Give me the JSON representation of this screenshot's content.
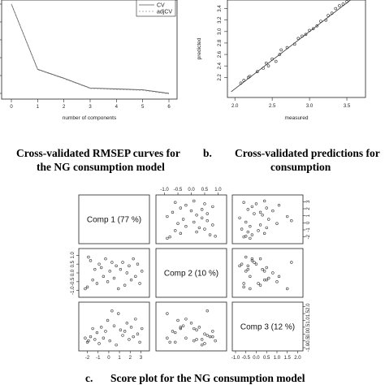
{
  "captions": {
    "a_line1": "Cross-validated RMSEP curves for",
    "a_line2": "the NG consumption model",
    "b_label": "b.",
    "b_line1": "Cross-validated predictions for",
    "b_line2": "consumption",
    "c_label": "c.",
    "c_text": "Score plot for the NG consumption model"
  },
  "chart_data": [
    {
      "type": "line",
      "xlabel": "number of components",
      "ylabel": "",
      "x_ticks": [
        "0",
        "1",
        "2",
        "3",
        "4",
        "5",
        "6"
      ],
      "xlim": [
        0,
        6
      ],
      "ylim": [
        0,
        1
      ],
      "legend": {
        "position": "top-right",
        "entries": [
          "CV",
          "adjCV"
        ]
      },
      "series": [
        {
          "name": "CV",
          "x": [
            0,
            1,
            2,
            3,
            4,
            5,
            6
          ],
          "y": [
            1.0,
            0.27,
            0.17,
            0.06,
            0.05,
            0.04,
            0.0
          ],
          "color": "#555555",
          "dash": ""
        },
        {
          "name": "adjCV",
          "x": [
            0,
            1,
            2,
            3,
            4,
            5,
            6
          ],
          "y": [
            1.0,
            0.265,
            0.165,
            0.055,
            0.045,
            0.035,
            -0.005
          ],
          "color": "#999999",
          "dash": "2,2"
        }
      ]
    },
    {
      "type": "scatter",
      "xlabel": "measured",
      "ylabel": "predicted",
      "xlim": [
        1.9,
        3.75
      ],
      "ylim": [
        1.85,
        3.55
      ],
      "x_ticks": [
        "2.0",
        "2.5",
        "3.0",
        "3.5"
      ],
      "y_ticks": [
        "2.2",
        "2.4",
        "2.6",
        "2.8",
        "3.0",
        "3.2",
        "3.4"
      ],
      "y_tick_values": [
        2.2,
        2.4,
        2.6,
        2.8,
        3.0,
        3.2,
        3.4
      ],
      "x_tick_values": [
        2.0,
        2.5,
        3.0,
        3.5
      ],
      "fit_line": [
        [
          1.95,
          1.95
        ],
        [
          3.7,
          3.7
        ]
      ],
      "points": [
        [
          2.08,
          2.1
        ],
        [
          2.12,
          2.15
        ],
        [
          2.18,
          2.2
        ],
        [
          2.2,
          2.22
        ],
        [
          2.3,
          2.3
        ],
        [
          2.38,
          2.36
        ],
        [
          2.42,
          2.45
        ],
        [
          2.5,
          2.52
        ],
        [
          2.55,
          2.48
        ],
        [
          2.6,
          2.6
        ],
        [
          2.62,
          2.68
        ],
        [
          2.7,
          2.72
        ],
        [
          2.8,
          2.78
        ],
        [
          2.85,
          2.88
        ],
        [
          2.9,
          2.92
        ],
        [
          2.95,
          2.95
        ],
        [
          3.0,
          3.02
        ],
        [
          3.05,
          3.05
        ],
        [
          3.1,
          3.1
        ],
        [
          3.15,
          3.18
        ],
        [
          3.22,
          3.2
        ],
        [
          3.3,
          3.32
        ],
        [
          3.35,
          3.4
        ],
        [
          3.4,
          3.45
        ],
        [
          3.45,
          3.48
        ],
        [
          3.5,
          3.52
        ],
        [
          2.45,
          2.4
        ],
        [
          3.25,
          3.28
        ]
      ]
    },
    {
      "type": "scatter",
      "subtype": "pairs",
      "diagonal_labels": [
        "Comp 1 (77 %)",
        "Comp 2 (10 %)",
        "Comp 3 (12 %)"
      ],
      "ranges": [
        [
          -2.5,
          3.5
        ],
        [
          -1.2,
          1.2
        ],
        [
          -1.0,
          2.1
        ]
      ],
      "comp1_ticks": [
        -2,
        -1,
        0,
        1,
        2,
        3
      ],
      "comp2_ticks": [
        -1.0,
        -0.5,
        0.0,
        0.5,
        1.0
      ],
      "comp3_ticks": [
        -1.0,
        -0.5,
        0.0,
        0.5,
        1.0,
        1.5,
        2.0
      ],
      "comp1_tick_labels": [
        "-2",
        "-1",
        "0",
        "1",
        "2",
        "3"
      ],
      "comp2_tick_labels": [
        "-1.0",
        "-0.5",
        "0.0",
        "0.5",
        "1.0"
      ],
      "comp3_tick_labels": [
        "-1.0",
        "-0.5",
        "0.0",
        "0.5",
        "1.0",
        "1.5",
        "2.0"
      ],
      "comp2_right_ticks": [
        -2,
        -1,
        0,
        1,
        2,
        3
      ],
      "comp2_right_tick_labels": [
        "-2",
        "-1",
        "0",
        "1",
        "2",
        "3"
      ],
      "scores": [
        [
          -2.2,
          -0.9,
          -0.3
        ],
        [
          -2.0,
          -0.8,
          -0.6
        ],
        [
          -1.9,
          0.9,
          -0.5
        ],
        [
          -1.7,
          0.7,
          -0.2
        ],
        [
          -1.5,
          -0.4,
          0.4
        ],
        [
          -1.3,
          0.2,
          -0.4
        ],
        [
          -1.1,
          -0.6,
          0.1
        ],
        [
          -0.9,
          0.5,
          -0.7
        ],
        [
          -0.7,
          0.3,
          0.5
        ],
        [
          -0.5,
          -0.2,
          -0.3
        ],
        [
          -0.3,
          0.8,
          0.2
        ],
        [
          -0.1,
          -0.5,
          1.0
        ],
        [
          0.1,
          0.1,
          -0.5
        ],
        [
          0.3,
          0.6,
          1.7
        ],
        [
          0.5,
          -0.3,
          0.6
        ],
        [
          0.7,
          0.4,
          -0.8
        ],
        [
          0.9,
          -0.9,
          1.5
        ],
        [
          1.1,
          0.2,
          0.3
        ],
        [
          1.3,
          0.6,
          -0.1
        ],
        [
          1.5,
          -0.7,
          0.2
        ],
        [
          1.7,
          0.0,
          0.8
        ],
        [
          1.9,
          0.4,
          -0.4
        ],
        [
          2.1,
          -0.4,
          0.5
        ],
        [
          2.3,
          0.8,
          -0.2
        ],
        [
          2.5,
          -0.2,
          1.1
        ],
        [
          2.7,
          0.5,
          0.0
        ],
        [
          2.9,
          -0.6,
          -0.6
        ],
        [
          3.1,
          0.1,
          0.4
        ]
      ]
    }
  ]
}
